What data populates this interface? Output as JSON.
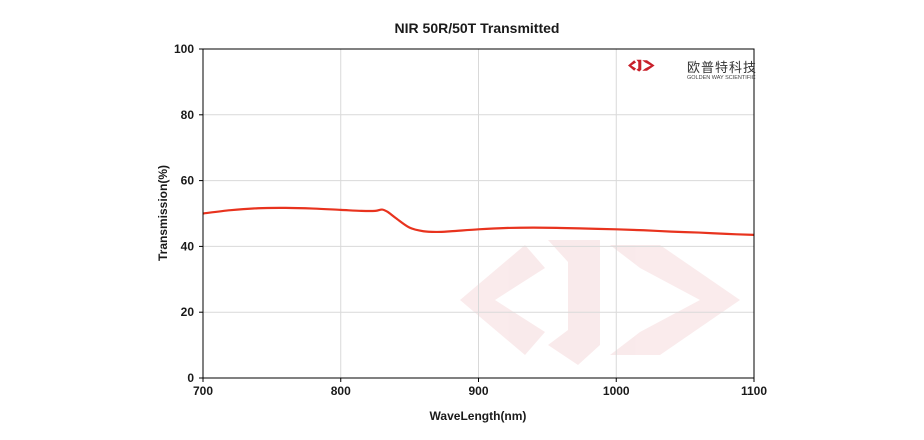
{
  "chart_data": {
    "type": "line",
    "title": "NIR 50R/50T Transmitted",
    "xlabel": "WaveLength(nm)",
    "ylabel": "Transmission(%)",
    "xlim": [
      700,
      1100
    ],
    "ylim": [
      0,
      100
    ],
    "xticks": [
      700,
      800,
      900,
      1000,
      1100
    ],
    "yticks": [
      0,
      20,
      40,
      60,
      80,
      100
    ],
    "grid": true,
    "series": [
      {
        "color": "#e8331e",
        "x": [
          700,
          720,
          740,
          760,
          780,
          800,
          815,
          825,
          830,
          834,
          840,
          850,
          860,
          870,
          880,
          900,
          920,
          940,
          960,
          980,
          1000,
          1020,
          1040,
          1060,
          1080,
          1100
        ],
        "y": [
          50.0,
          51.0,
          51.6,
          51.7,
          51.5,
          51.1,
          50.8,
          50.8,
          51.2,
          50.5,
          48.6,
          45.7,
          44.6,
          44.4,
          44.6,
          45.2,
          45.6,
          45.7,
          45.6,
          45.4,
          45.2,
          44.9,
          44.5,
          44.2,
          43.8,
          43.5
        ]
      }
    ]
  },
  "logo": {
    "name_cn": "欧普特科技",
    "name_en": "GOLDEN WAY SCIENTIFIC",
    "color": "#c8202a"
  }
}
